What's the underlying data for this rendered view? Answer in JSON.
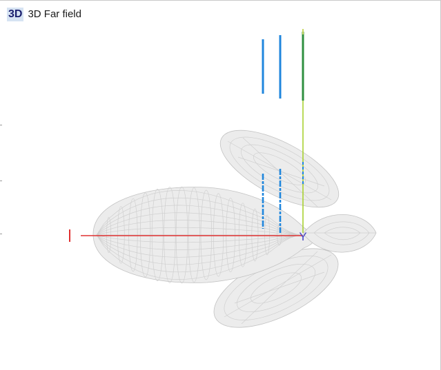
{
  "window": {
    "badge": "3D",
    "title": "3D Far field"
  },
  "axes": {
    "x_label": "",
    "y_label": "Y",
    "x_color": "#e03030",
    "y_color": "#4646c8",
    "z_color": "#a8d030"
  },
  "colors": {
    "mesh": "#c8c8c8",
    "element_bar": "#1f86dd",
    "element_bar_top": "#2f8f3f"
  }
}
